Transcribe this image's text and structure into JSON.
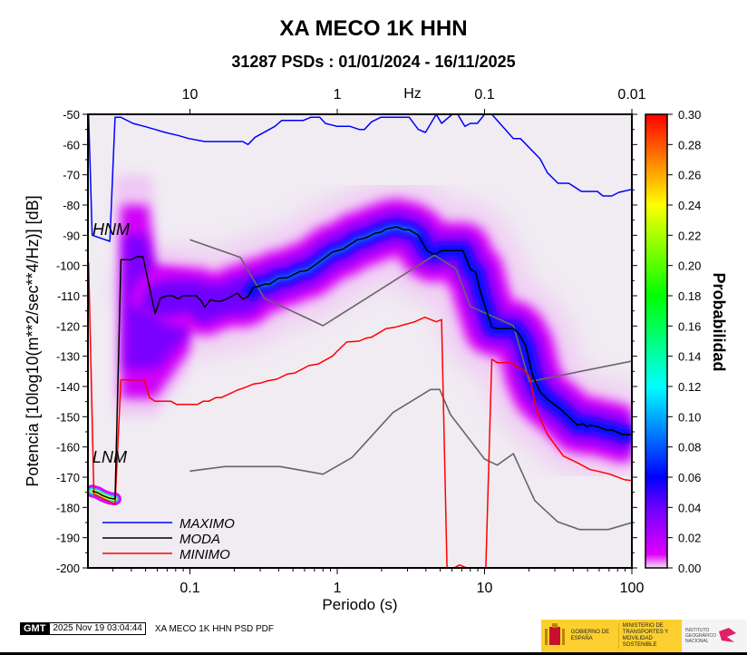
{
  "title": "XA MECO 1K HHN",
  "subtitle": "31287 PSDs : 01/01/2024 - 16/11/2025",
  "footer": {
    "gmt_logo": "GMT",
    "timestamp": "2025 Nov 19 03:04:44",
    "plot_label": "XA MECO 1K HHN PSD PDF",
    "logos": {
      "gobierno": "GOBIERNO DE ESPAÑA",
      "ministerio": "MINISTERIO DE TRANSPORTES Y MOVILIDAD SOSTENIBLE",
      "instituto": "INSTITUTO GEOGRÁFICO NACIONAL"
    }
  },
  "chart_data": {
    "type": "line",
    "xlabel": "Periodo (s)",
    "ylabel": "Potencia [10log10(m**2/sec**4/Hz)] [dB]",
    "x_scale": "log",
    "xlim": [
      0.0203,
      100
    ],
    "ylim": [
      -200,
      -50
    ],
    "x_ticks": [
      {
        "value": 0.1,
        "label": "0.1"
      },
      {
        "value": 1,
        "label": "1"
      },
      {
        "value": 10,
        "label": "10"
      },
      {
        "value": 100,
        "label": "100"
      }
    ],
    "y_ticks": [
      -50,
      -60,
      -70,
      -80,
      -90,
      -100,
      -110,
      -120,
      -130,
      -140,
      -150,
      -160,
      -170,
      -180,
      -190,
      -200
    ],
    "top_axis": {
      "label": "Hz",
      "ticks": [
        {
          "freq": 10,
          "label": "10"
        },
        {
          "freq": 1,
          "label": "1"
        },
        {
          "freq": 0.1,
          "label": "0.1"
        },
        {
          "freq": 0.01,
          "label": "0.01"
        }
      ]
    },
    "colorbar": {
      "label": "Probabilidad",
      "range": [
        0,
        0.3
      ],
      "ticks": [
        "0.00",
        "0.02",
        "0.04",
        "0.06",
        "0.08",
        "0.10",
        "0.12",
        "0.14",
        "0.16",
        "0.18",
        "0.20",
        "0.22",
        "0.24",
        "0.26",
        "0.28",
        "0.30"
      ]
    },
    "annotations": [
      "HNM",
      "LNM"
    ],
    "colors": {
      "maximo": "#0000ff",
      "moda": "#000000",
      "minimo": "#ff0000",
      "noise_models": "#666666",
      "background": "#f0ecf2"
    },
    "series": [
      {
        "name": "MAXIMO",
        "color": "#0000ff",
        "points": [
          [
            0.0205,
            -50
          ],
          [
            0.0217,
            -90
          ],
          [
            0.0286,
            -92
          ],
          [
            0.031,
            -51
          ],
          [
            0.034,
            -51
          ],
          [
            0.041,
            -53
          ],
          [
            0.049,
            -54
          ],
          [
            0.058,
            -55
          ],
          [
            0.068,
            -56
          ],
          [
            0.083,
            -57
          ],
          [
            0.098,
            -58
          ],
          [
            0.126,
            -59
          ],
          [
            0.228,
            -59
          ],
          [
            0.248,
            -60
          ],
          [
            0.277,
            -57.6
          ],
          [
            0.377,
            -54
          ],
          [
            0.42,
            -52
          ],
          [
            0.59,
            -52
          ],
          [
            0.66,
            -51
          ],
          [
            0.76,
            -51
          ],
          [
            0.83,
            -53
          ],
          [
            1.0,
            -54
          ],
          [
            1.22,
            -54
          ],
          [
            1.41,
            -55
          ],
          [
            1.53,
            -55
          ],
          [
            1.71,
            -52.5
          ],
          [
            1.97,
            -51
          ],
          [
            3.08,
            -51
          ],
          [
            3.55,
            -55
          ],
          [
            3.97,
            -56
          ],
          [
            4.7,
            -50
          ],
          [
            5.11,
            -53
          ],
          [
            6.04,
            -50
          ],
          [
            6.57,
            -50
          ],
          [
            7.35,
            -54
          ],
          [
            8.0,
            -53
          ],
          [
            8.94,
            -53
          ],
          [
            10,
            -50
          ],
          [
            11.2,
            -50
          ],
          [
            15.7,
            -58
          ],
          [
            17.5,
            -58
          ],
          [
            23.8,
            -64.7
          ],
          [
            26.7,
            -69.3
          ],
          [
            31.5,
            -72.8
          ],
          [
            37.3,
            -72.8
          ],
          [
            45.4,
            -75.5
          ],
          [
            58.4,
            -75.5
          ],
          [
            63.5,
            -77
          ],
          [
            73.1,
            -77
          ],
          [
            81.7,
            -75.8
          ],
          [
            100,
            -74.8
          ]
        ]
      },
      {
        "name": "MODA",
        "color": "#000000",
        "points": [
          [
            0.0217,
            -174.6
          ],
          [
            0.0236,
            -175.1
          ],
          [
            0.0256,
            -176.1
          ],
          [
            0.0286,
            -177
          ],
          [
            0.031,
            -177.2
          ],
          [
            0.034,
            -98.1
          ],
          [
            0.04,
            -98.1
          ],
          [
            0.0436,
            -97.1
          ],
          [
            0.048,
            -97.1
          ],
          [
            0.058,
            -115.9
          ],
          [
            0.063,
            -110.8
          ],
          [
            0.07,
            -110
          ],
          [
            0.076,
            -110
          ],
          [
            0.083,
            -111
          ],
          [
            0.09,
            -110
          ],
          [
            0.11,
            -110
          ],
          [
            0.12,
            -111.8
          ],
          [
            0.126,
            -113.8
          ],
          [
            0.138,
            -111.3
          ],
          [
            0.15,
            -111.8
          ],
          [
            0.163,
            -111.8
          ],
          [
            0.182,
            -110.8
          ],
          [
            0.21,
            -109.1
          ],
          [
            0.228,
            -111.1
          ],
          [
            0.248,
            -110.3
          ],
          [
            0.27,
            -107.2
          ],
          [
            0.293,
            -106.9
          ],
          [
            0.319,
            -106.2
          ],
          [
            0.347,
            -106.2
          ],
          [
            0.399,
            -104.2
          ],
          [
            0.459,
            -104
          ],
          [
            0.558,
            -102
          ],
          [
            0.625,
            -101.7
          ],
          [
            0.74,
            -99.1
          ],
          [
            0.925,
            -95.6
          ],
          [
            1.09,
            -94.6
          ],
          [
            1.37,
            -91.5
          ],
          [
            1.53,
            -91
          ],
          [
            1.62,
            -90.5
          ],
          [
            1.81,
            -89.3
          ],
          [
            1.97,
            -89
          ],
          [
            2.14,
            -88
          ],
          [
            2.53,
            -87.2
          ],
          [
            2.84,
            -88.2
          ],
          [
            3.08,
            -88.2
          ],
          [
            3.55,
            -90
          ],
          [
            4.08,
            -95.1
          ],
          [
            4.44,
            -96.1
          ],
          [
            4.7,
            -96.1
          ],
          [
            5.11,
            -95.1
          ],
          [
            7.14,
            -95.1
          ],
          [
            8.0,
            -101.2
          ],
          [
            8.69,
            -102.2
          ],
          [
            9.46,
            -109.3
          ],
          [
            11.2,
            -120.4
          ],
          [
            12.2,
            -120.9
          ],
          [
            15.7,
            -120.9
          ],
          [
            17.0,
            -122.4
          ],
          [
            19.0,
            -126.5
          ],
          [
            21.3,
            -136.6
          ],
          [
            23.8,
            -141.7
          ],
          [
            26.7,
            -144.2
          ],
          [
            33.3,
            -147.8
          ],
          [
            42.9,
            -152.8
          ],
          [
            46.7,
            -152.3
          ],
          [
            49.3,
            -153.3
          ],
          [
            52.2,
            -152.8
          ],
          [
            58.4,
            -153.3
          ],
          [
            67.2,
            -154.4
          ],
          [
            73.1,
            -154.4
          ],
          [
            86.5,
            -155.9
          ],
          [
            100,
            -155.9
          ]
        ]
      },
      {
        "name": "MINIMO",
        "color": "#ff0000",
        "points": [
          [
            0.0205,
            -99
          ],
          [
            0.0223,
            -175.6
          ],
          [
            0.031,
            -179
          ],
          [
            0.034,
            -137.8
          ],
          [
            0.0489,
            -137.8
          ],
          [
            0.0531,
            -143.7
          ],
          [
            0.058,
            -144.9
          ],
          [
            0.0743,
            -144.9
          ],
          [
            0.081,
            -145.9
          ],
          [
            0.113,
            -145.9
          ],
          [
            0.123,
            -144.9
          ],
          [
            0.134,
            -144.9
          ],
          [
            0.15,
            -143.7
          ],
          [
            0.163,
            -143.7
          ],
          [
            0.21,
            -141.2
          ],
          [
            0.241,
            -140.2
          ],
          [
            0.27,
            -139.2
          ],
          [
            0.301,
            -138.9
          ],
          [
            0.337,
            -138.1
          ],
          [
            0.388,
            -137.6
          ],
          [
            0.459,
            -135.9
          ],
          [
            0.513,
            -135.6
          ],
          [
            0.642,
            -133.1
          ],
          [
            0.74,
            -132.6
          ],
          [
            0.925,
            -130
          ],
          [
            1.03,
            -127.7
          ],
          [
            1.16,
            -125.3
          ],
          [
            1.41,
            -125
          ],
          [
            1.57,
            -124
          ],
          [
            1.71,
            -123.7
          ],
          [
            2.14,
            -120.9
          ],
          [
            2.47,
            -120.4
          ],
          [
            2.84,
            -119.6
          ],
          [
            3.36,
            -118.6
          ],
          [
            3.93,
            -117.1
          ],
          [
            4.7,
            -118.6
          ],
          [
            5.11,
            -117.9
          ],
          [
            5.56,
            -200
          ],
          [
            6.21,
            -200
          ],
          [
            6.76,
            -199
          ],
          [
            7.55,
            -200
          ],
          [
            10.2,
            -200
          ],
          [
            11.2,
            -131
          ],
          [
            12.2,
            -132.1
          ],
          [
            14.8,
            -132.1
          ],
          [
            16.6,
            -133.4
          ],
          [
            18.5,
            -134.6
          ],
          [
            20.2,
            -136.6
          ],
          [
            22.5,
            -147.8
          ],
          [
            26.7,
            -155.9
          ],
          [
            34.3,
            -163
          ],
          [
            41.7,
            -165
          ],
          [
            52.2,
            -167.5
          ],
          [
            58.4,
            -168
          ],
          [
            71.1,
            -169
          ],
          [
            88.9,
            -170.8
          ],
          [
            100,
            -171.1
          ]
        ]
      },
      {
        "label": "HNM",
        "color": "#666666",
        "points": [
          [
            0.1,
            -91.5
          ],
          [
            0.22,
            -97.3
          ],
          [
            0.32,
            -110.8
          ],
          [
            0.8,
            -119.9
          ],
          [
            4.57,
            -96.6
          ],
          [
            6.38,
            -101
          ],
          [
            8,
            -113.5
          ],
          [
            15.7,
            -119.9
          ],
          [
            20.2,
            -138.4
          ],
          [
            100,
            -131.6
          ]
        ]
      },
      {
        "label": "LNM",
        "color": "#666666",
        "points": [
          [
            0.1,
            -168
          ],
          [
            0.172,
            -166.5
          ],
          [
            0.41,
            -166.5
          ],
          [
            0.8,
            -169
          ],
          [
            1.26,
            -163.5
          ],
          [
            2.39,
            -148.6
          ],
          [
            4.3,
            -141
          ],
          [
            4.96,
            -141
          ],
          [
            5.87,
            -149.3
          ],
          [
            10,
            -164
          ],
          [
            12.2,
            -166
          ],
          [
            15.7,
            -162.2
          ],
          [
            21.9,
            -177.7
          ],
          [
            31.4,
            -184.8
          ],
          [
            44.2,
            -187.3
          ],
          [
            69.3,
            -187.3
          ],
          [
            100,
            -185
          ]
        ]
      }
    ],
    "legend": {
      "placement": "bottom-left",
      "entries": [
        "MAXIMO",
        "MODA",
        "MINIMO"
      ]
    }
  }
}
